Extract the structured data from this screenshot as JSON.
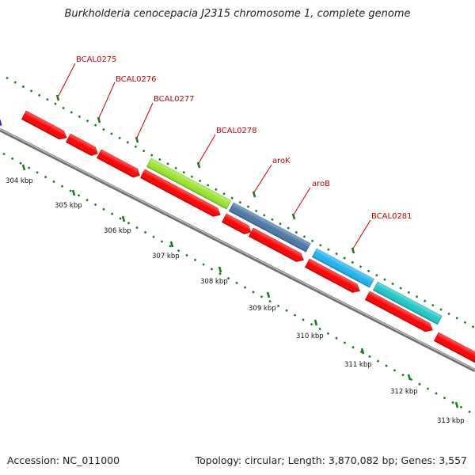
{
  "title": "Burkholderia cenocepacia J2315 chromosome 1, complete genome",
  "footer": {
    "accession": "Accession: NC_011000",
    "summary": "Topology: circular; Length: 3,870,082 bp; Genes: 3,557"
  },
  "colors": {
    "backbone": "#8c8c8c",
    "cds": "#ff0000",
    "tick": "#1a7a1a",
    "label": "#cc0000",
    "leader": "#cc0000"
  },
  "genes_top": [
    {
      "name": "BCAL0275",
      "color": "#ff0000"
    },
    {
      "name": "BCAL0276",
      "color": "#ff0000"
    },
    {
      "name": "BCAL0277",
      "color": "#ff0000"
    },
    {
      "name": "BCAL0278",
      "color": "#99e62e"
    },
    {
      "name": "aroK",
      "color": "#4a78a8"
    },
    {
      "name": "aroB",
      "color": "#1fb4f0"
    },
    {
      "name": "BCAL0281",
      "color": "#1ec8c8"
    }
  ],
  "ticks": [
    "304 kbp",
    "305 kbp",
    "306 kbp",
    "307 kbp",
    "308 kbp",
    "309 kbp",
    "310 kbp",
    "311 kbp",
    "312 kbp",
    "313 kbp"
  ]
}
